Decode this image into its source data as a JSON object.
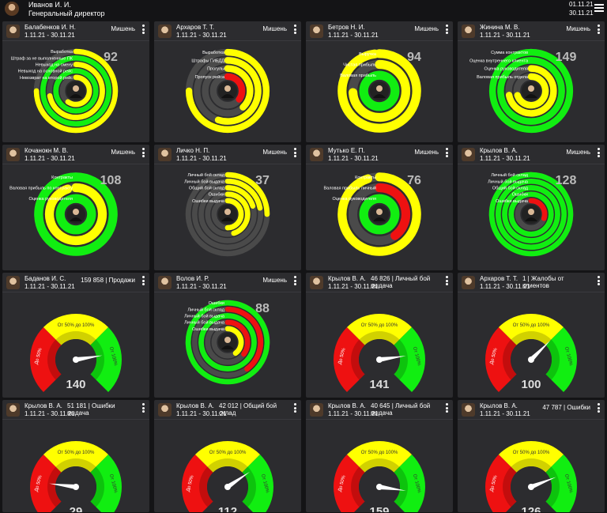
{
  "header": {
    "user_name": "Иванов И. И.",
    "user_role": "Генеральный директор",
    "date_from": "01.11.21",
    "date_to": "30.11.21",
    "icons": [
      "avatar",
      "menu-icon"
    ]
  },
  "colors": {
    "yellow": "#ffff00",
    "green": "#11ee11",
    "red": "#ee1111",
    "track": "#4a4a4a",
    "card": "#2c2c2f",
    "bg": "#141416"
  },
  "cards": [
    {
      "name": "Балабенков И. Н.",
      "period": "1.11.21 - 30.11.21",
      "mode": "Мишень",
      "type": "rings",
      "value": "92",
      "labels": [
        "Выработка",
        "Штраф за не выполненные ПК",
        "Невыход на смену",
        "Невыход на основной рейс",
        "Невозврат на второй рейс"
      ],
      "rings": [
        [
          "yellow",
          0.75
        ],
        [
          "green",
          1
        ],
        [
          "yellow",
          0.72
        ],
        [
          "green",
          1
        ],
        [
          "yellow",
          0.6
        ]
      ]
    },
    {
      "name": "Архаров Т. Т.",
      "period": "1.11.21 - 30.11.21",
      "mode": "Мишень",
      "type": "rings",
      "value": "",
      "labels": [
        "Выработка",
        "Штрафы ГИБДД",
        "Прогулы",
        "Пропуск рейса"
      ],
      "rings": [
        [
          "yellow",
          0.75
        ],
        [
          "yellow",
          0.55
        ],
        [
          "yellow",
          0.38
        ],
        [
          "red",
          0.35
        ]
      ],
      "footnote": "Пропуск рейса | Вес: 5 | Факт: 7 | План: 3 | -38%"
    },
    {
      "name": "Бетров Н. И.",
      "period": "1.11.21 - 30.11.21",
      "mode": "Мишень",
      "type": "rings",
      "value": "94",
      "labels": [
        "Выручка",
        "Чистая прибыль",
        "Валовая прибыль"
      ],
      "rings": [
        [
          "yellow",
          0.98
        ],
        [
          "yellow",
          0.74
        ],
        [
          "green",
          1
        ]
      ]
    },
    {
      "name": "Жинина М. В.",
      "period": "1.11.21 - 30.11.21",
      "mode": "Мишень",
      "type": "rings",
      "value": "149",
      "labels": [
        "Сумма контрактов",
        "Оценка внутреннего клиента",
        "Оценка руководителя",
        "Валовая прибыль отдела"
      ],
      "rings": [
        [
          "green",
          1
        ],
        [
          "green",
          1
        ],
        [
          "yellow",
          0.72
        ],
        [
          "yellow",
          0.7
        ]
      ]
    },
    {
      "name": "Кочанокн М. В.",
      "period": "1.11.21 - 30.11.21",
      "mode": "Мишень",
      "type": "rings",
      "value": "108",
      "labels": [
        "Контракты",
        "Валовая прибыль по контракту",
        "Оценка руководителя"
      ],
      "rings": [
        [
          "green",
          1
        ],
        [
          "yellow",
          0.95
        ],
        [
          "green",
          1
        ]
      ]
    },
    {
      "name": "Личко Н. П.",
      "period": "1.11.21 - 30.11.21",
      "mode": "Мишень",
      "type": "rings",
      "value": "37",
      "labels": [
        "Личный бой склад",
        "Личный бой выдача",
        "Общий бой склад",
        "Ошибки",
        "Ошибки выдача"
      ],
      "rings": [
        [
          "yellow",
          0.25
        ],
        [
          "yellow",
          0.22
        ],
        [
          "yellow",
          0.2
        ],
        [
          "yellow",
          0.45
        ],
        [
          "yellow",
          0.5
        ]
      ]
    },
    {
      "name": "Мутько Е. П.",
      "period": "1.11.21 - 30.11.21",
      "mode": "Мишень",
      "type": "rings",
      "value": "76",
      "labels": [
        "Контракты",
        "Валовая прибыль личный",
        "Оценка руководителя"
      ],
      "rings": [
        [
          "yellow",
          0.95
        ],
        [
          "red",
          0.4
        ],
        [
          "green",
          1
        ]
      ]
    },
    {
      "name": "Крылов В. А.",
      "period": "1.11.21 - 30.11.21",
      "mode": "Мишень",
      "type": "rings",
      "value": "128",
      "labels": [
        "Личный бой склад",
        "Личный бой выдача",
        "Общий бой склад",
        "Ошибки",
        "Ошибки выдача"
      ],
      "rings": [
        [
          "green",
          1
        ],
        [
          "green",
          1
        ],
        [
          "green",
          1
        ],
        [
          "green",
          1
        ],
        [
          "red",
          0.3
        ]
      ]
    },
    {
      "name": "Баданов И. С.",
      "period": "1.11.21 - 30.11.21",
      "mode": "159 858 | Продажи",
      "type": "gauge",
      "value": "140",
      "ratio": 1.4
    },
    {
      "name": "Волов И. Р.",
      "period": "1.11.21 - 30.11.21",
      "mode": "Мишень",
      "type": "rings",
      "value": "88",
      "labels": [
        "Ошибки",
        "Личный бой склад",
        "Личный бой выдача",
        "Личный бой выдача",
        "Ошибки выдача"
      ],
      "rings": [
        [
          "green",
          1
        ],
        [
          "red",
          0.4
        ],
        [
          "green",
          1
        ],
        [
          "red",
          0.35
        ],
        [
          "yellow",
          0.4
        ]
      ]
    },
    {
      "name": "Крылов В. А.",
      "period": "1.11.21 - 30.11.21",
      "mode": "46 826 | Личный бой выдача",
      "type": "gauge",
      "value": "141",
      "ratio": 1.41
    },
    {
      "name": "Архаров Т. Т.",
      "period": "1.11.21 - 30.11.21",
      "mode": "1 | Жалобы от клиентов",
      "type": "gauge",
      "value": "100",
      "ratio": 1.0
    },
    {
      "name": "Крылов В. А.",
      "period": "1.11.21 - 30.11.21",
      "mode": "51 181 | Ошибки выдача",
      "type": "gauge",
      "value": "29",
      "ratio": 0.29
    },
    {
      "name": "Крылов В. А.",
      "period": "1.11.21 - 30.11.21",
      "mode": "42 012 | Общий бой склад",
      "type": "gauge",
      "value": "112",
      "ratio": 1.12
    },
    {
      "name": "Крылов В. А.",
      "period": "1.11.21 - 30.11.21",
      "mode": "40 645 | Личный бой выдача",
      "type": "gauge",
      "value": "159",
      "ratio": 1.59
    },
    {
      "name": "Крылов В. А.",
      "period": "1.11.21 - 30.11.21",
      "mode": "47 787 | Ошибки",
      "type": "gauge",
      "value": "126",
      "ratio": 1.26
    }
  ],
  "gauge_labels": {
    "low": "До 50%",
    "mid": "От 50% до 100%",
    "high": "От 100%"
  }
}
